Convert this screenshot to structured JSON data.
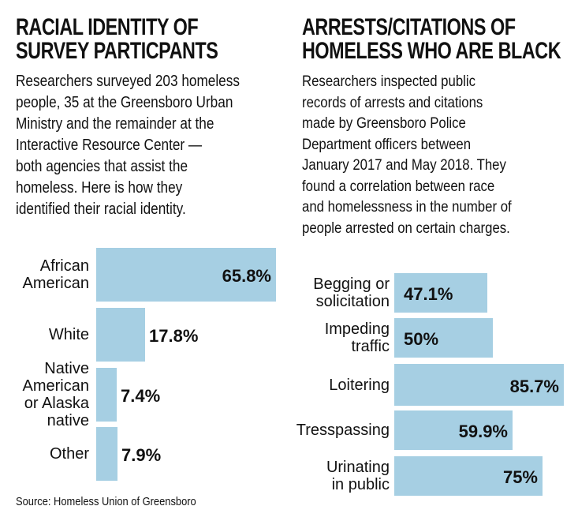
{
  "left_panel": {
    "title_lines": [
      "RACIAL IDENTITY OF",
      "SURVEY PARTICPANTS"
    ],
    "description_lines": [
      "Researchers surveyed 203 homeless",
      "people, 35 at the Greensboro Urban",
      "Ministry and the remainder at the",
      "Interactive Resource Center —",
      "both agencies that assist the",
      "homeless. Here is how they",
      "identified their racial identity."
    ],
    "source": "Source: Homeless Union of Greensboro"
  },
  "right_panel": {
    "title_lines": [
      "ARRESTS/CITATIONS OF",
      "HOMELESS WHO ARE BLACK"
    ],
    "description_lines": [
      "Researchers inspected public",
      "records of arrests and citations",
      "made by Greensboro Police",
      "Department officers between",
      "January 2017 and May 2018. They",
      "found a correlation between race",
      "and homelessness in the number of",
      "people arrested on certain charges."
    ]
  },
  "colors": {
    "bar": "#a6cfe3",
    "text": "#111111"
  },
  "chart_data": [
    {
      "type": "bar",
      "orientation": "horizontal",
      "title": "RACIAL IDENTITY OF SURVEY PARTICPANTS",
      "unit": "%",
      "categories": [
        [
          "African",
          "American"
        ],
        [
          "White"
        ],
        [
          "Native",
          "American",
          "or Alaska",
          "native"
        ],
        [
          "Other"
        ]
      ],
      "values": [
        65.8,
        17.8,
        7.4,
        7.9
      ],
      "labels": [
        "65.8%",
        "17.8%",
        "7.4%",
        "7.9%"
      ],
      "xlim": [
        0,
        65.8
      ]
    },
    {
      "type": "bar",
      "orientation": "horizontal",
      "title": "ARRESTS/CITATIONS OF HOMELESS WHO ARE BLACK",
      "unit": "%",
      "categories": [
        [
          "Begging or",
          "solicitation"
        ],
        [
          "Impeding",
          "traffic"
        ],
        [
          "Loitering"
        ],
        [
          "Tresspassing"
        ],
        [
          "Urinating",
          "in public"
        ]
      ],
      "values": [
        47.1,
        50,
        85.7,
        59.9,
        75
      ],
      "labels": [
        "47.1%",
        "50%",
        "85.7%",
        "59.9%",
        "75%"
      ],
      "xlim": [
        0,
        85.7
      ]
    }
  ]
}
